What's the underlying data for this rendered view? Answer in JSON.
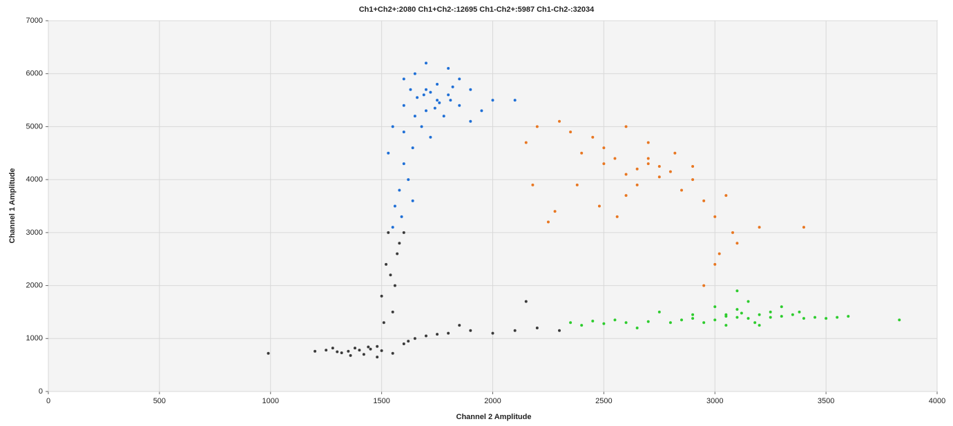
{
  "chart_data": {
    "type": "scatter",
    "title": "Ch1+Ch2+:2080  Ch1+Ch2-:12695  Ch1-Ch2+:5987  Ch1-Ch2-:32034",
    "x_label": "Channel 2 Amplitude",
    "y_label": "Channel 1 Amplitude",
    "xlim": [
      0,
      4000
    ],
    "xticks": [
      0,
      500,
      1000,
      1500,
      2000,
      2500,
      3000,
      3500,
      4000
    ],
    "ylim": [
      0,
      7000
    ],
    "yticks": [
      0,
      1000,
      2000,
      3000,
      4000,
      5000,
      6000,
      7000
    ],
    "grid": true,
    "series": [
      {
        "color": "#1f6fd6",
        "x": [
          1600,
          1650,
          1700,
          1750,
          1800,
          1850,
          1700,
          1650,
          1750,
          1800,
          1900,
          1950,
          1600,
          1680,
          1720,
          1640,
          1600,
          1620,
          1580,
          1560,
          1590,
          1550,
          1700,
          1850,
          1900,
          2000,
          1550,
          1780,
          1720,
          1820,
          1660,
          1600,
          1640,
          1530,
          2100,
          1760,
          1740,
          1690,
          1810,
          1630
        ],
        "values": [
          5900,
          6000,
          5700,
          5500,
          5600,
          5400,
          5300,
          5200,
          5800,
          6100,
          5700,
          5300,
          5400,
          5000,
          4800,
          4600,
          4300,
          4000,
          3800,
          3500,
          3300,
          3100,
          6200,
          5900,
          5100,
          5500,
          5000,
          5200,
          5650,
          5750,
          5550,
          4900,
          3600,
          4500,
          5500,
          5450,
          5350,
          5600,
          5500,
          5700
        ]
      },
      {
        "color": "#e87722",
        "x": [
          2650,
          2700,
          2600,
          2750,
          2550,
          2800,
          2500,
          2900,
          2450,
          2400,
          2350,
          2300,
          2200,
          2150,
          2250,
          2850,
          2950,
          3000,
          3050,
          3100,
          2600,
          2700,
          2500,
          2650,
          2750,
          2900,
          3000,
          2950,
          3020,
          3080,
          2480,
          2560,
          2380,
          2820,
          2700,
          2600,
          2180,
          3200,
          3400,
          2280
        ],
        "values": [
          4200,
          4300,
          4100,
          4250,
          4400,
          4150,
          4600,
          4000,
          4800,
          4500,
          4900,
          5100,
          5000,
          4700,
          3200,
          3800,
          3600,
          3300,
          3700,
          2800,
          3700,
          4400,
          4300,
          3900,
          4050,
          4250,
          2400,
          2000,
          2600,
          3000,
          3500,
          3300,
          3900,
          4500,
          4700,
          5000,
          3900,
          3100,
          3100,
          3400
        ]
      },
      {
        "color": "#2ecc2e",
        "x": [
          3100,
          3150,
          3050,
          3200,
          3000,
          3250,
          2950,
          3300,
          2900,
          3350,
          2850,
          3400,
          2800,
          3450,
          2700,
          3500,
          2600,
          3550,
          2500,
          2450,
          2400,
          2350,
          3000,
          3100,
          3200,
          3150,
          3050,
          3250,
          2750,
          2650,
          3600,
          3830,
          3300,
          3100,
          2900,
          3050,
          3180,
          3120,
          3380,
          2550
        ],
        "values": [
          1400,
          1380,
          1420,
          1450,
          1350,
          1400,
          1300,
          1420,
          1380,
          1450,
          1350,
          1380,
          1300,
          1400,
          1320,
          1380,
          1300,
          1400,
          1280,
          1330,
          1250,
          1300,
          1600,
          1550,
          1250,
          1700,
          1250,
          1500,
          1500,
          1200,
          1420,
          1350,
          1600,
          1900,
          1450,
          1450,
          1300,
          1480,
          1500,
          1350
        ]
      },
      {
        "color": "#3a3a3a",
        "x": [
          1400,
          1350,
          1450,
          1300,
          1500,
          1380,
          1420,
          1250,
          1550,
          1320,
          1480,
          1200,
          1600,
          1650,
          1700,
          1800,
          1900,
          2000,
          2100,
          2200,
          2300,
          1550,
          1560,
          1520,
          1580,
          1500,
          1540,
          1600,
          1570,
          1510,
          1530,
          990,
          1480,
          1360,
          1440,
          1280,
          1750,
          1850,
          2150,
          1620
        ],
        "values": [
          780,
          760,
          800,
          750,
          770,
          820,
          700,
          780,
          720,
          730,
          850,
          760,
          900,
          1000,
          1050,
          1100,
          1150,
          1100,
          1150,
          1200,
          1150,
          1500,
          2000,
          2400,
          2800,
          1800,
          2200,
          3000,
          2600,
          1300,
          3000,
          720,
          650,
          680,
          840,
          820,
          1080,
          1250,
          1700,
          950
        ]
      }
    ]
  }
}
